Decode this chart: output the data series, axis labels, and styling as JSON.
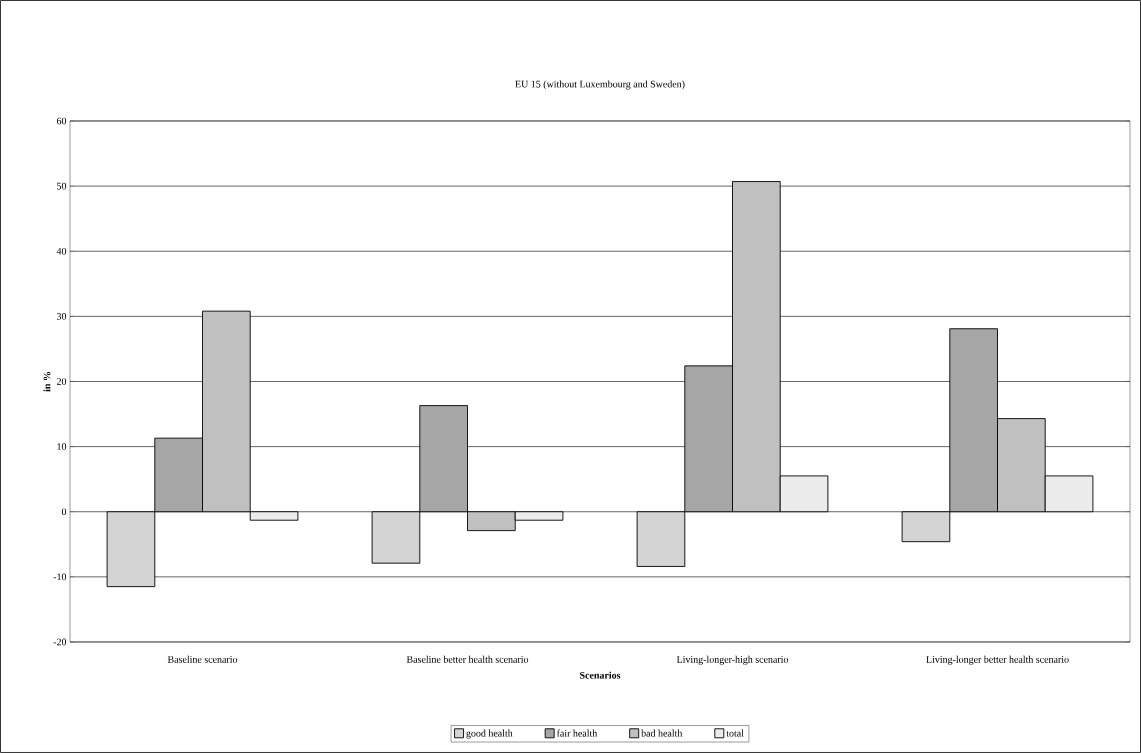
{
  "chart_data": {
    "type": "bar",
    "title": "EU 15 (without Luxembourg and Sweden)",
    "xlabel": "Scenarios",
    "ylabel": "in %",
    "categories": [
      "Baseline scenario",
      "Baseline better health scenario",
      "Living-longer-high scenario",
      "Living-longer better health scenario"
    ],
    "series": [
      {
        "name": "good health",
        "color": "#d4d4d4",
        "values": [
          -11.5,
          -7.9,
          -8.4,
          -4.6
        ]
      },
      {
        "name": "fair health",
        "color": "#a6a6a6",
        "values": [
          11.3,
          16.3,
          22.4,
          28.1
        ]
      },
      {
        "name": "bad health",
        "color": "#c0c0c0",
        "values": [
          30.8,
          -2.9,
          50.7,
          14.3
        ]
      },
      {
        "name": "total",
        "color": "#ececec",
        "values": [
          -1.3,
          -1.3,
          5.5,
          5.5
        ]
      }
    ],
    "ylim": [
      -20,
      60
    ],
    "yticks": [
      -20,
      -10,
      0,
      10,
      20,
      30,
      40,
      50,
      60
    ],
    "grid": "y",
    "legend": "bottom"
  }
}
